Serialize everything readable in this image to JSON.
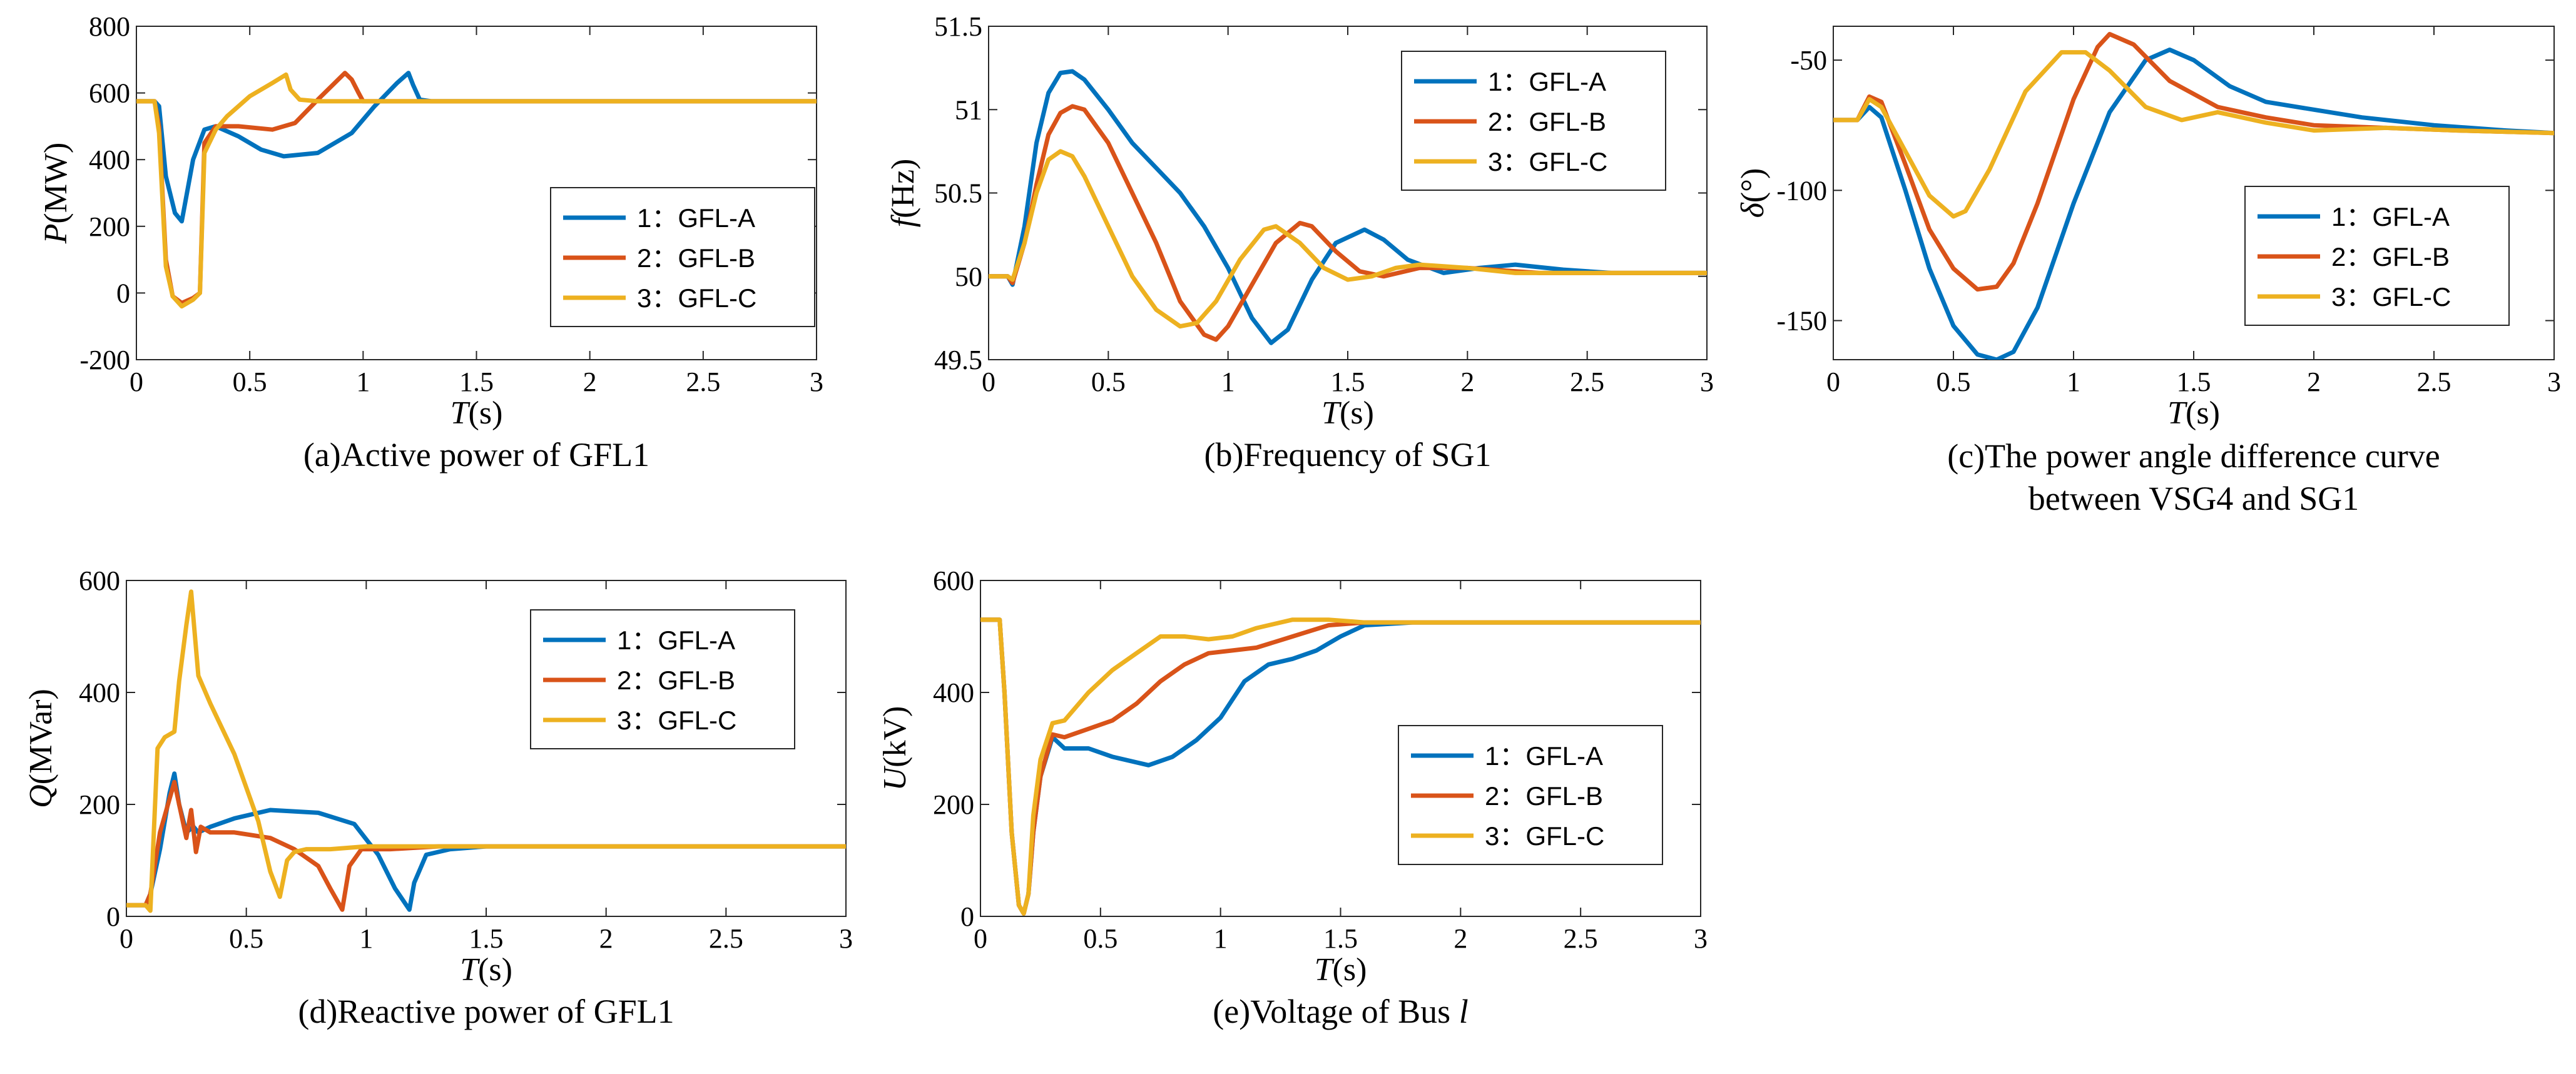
{
  "colors": {
    "A": "#0072BD",
    "B": "#D95319",
    "C": "#EDB120"
  },
  "chart_data": [
    {
      "type": "line",
      "id": "a",
      "caption": "(a)Active power of GFL1",
      "ylabel_sym": "P",
      "ylabel_unit": "(MW)",
      "xlabel_sym": "T",
      "xlabel_unit": "(s)",
      "xlim": [
        0,
        3
      ],
      "ylim": [
        -200,
        800
      ],
      "xticks": [
        0,
        0.5,
        1,
        1.5,
        2,
        2.5,
        3
      ],
      "yticks": [
        -200,
        0,
        200,
        400,
        600,
        800
      ],
      "legend": "lower-right",
      "series": [
        {
          "name": "1：GFL-A",
          "color_key": "A",
          "x": [
            0,
            0.08,
            0.1,
            0.13,
            0.17,
            0.2,
            0.25,
            0.3,
            0.35,
            0.45,
            0.55,
            0.65,
            0.8,
            0.95,
            1.05,
            1.15,
            1.2,
            1.22,
            1.25,
            1.3,
            1.4,
            3
          ],
          "y": [
            575,
            575,
            560,
            350,
            240,
            215,
            400,
            490,
            500,
            470,
            430,
            410,
            420,
            480,
            560,
            630,
            660,
            625,
            580,
            575,
            575,
            575
          ]
        },
        {
          "name": "2：GFL-B",
          "color_key": "B",
          "x": [
            0,
            0.08,
            0.1,
            0.13,
            0.16,
            0.2,
            0.25,
            0.28,
            0.3,
            0.35,
            0.45,
            0.6,
            0.7,
            0.8,
            0.92,
            0.95,
            0.98,
            1.0,
            1.05,
            1.2,
            3
          ],
          "y": [
            575,
            575,
            500,
            100,
            -10,
            -30,
            -15,
            0,
            450,
            500,
            500,
            490,
            510,
            580,
            660,
            640,
            600,
            575,
            575,
            575,
            575
          ]
        },
        {
          "name": "3：GFL-C",
          "color_key": "C",
          "x": [
            0,
            0.08,
            0.1,
            0.13,
            0.16,
            0.2,
            0.25,
            0.28,
            0.3,
            0.35,
            0.4,
            0.5,
            0.6,
            0.66,
            0.68,
            0.72,
            0.8,
            1.0,
            3
          ],
          "y": [
            575,
            575,
            480,
            80,
            -10,
            -40,
            -20,
            0,
            420,
            490,
            530,
            590,
            630,
            655,
            610,
            580,
            575,
            575,
            575
          ]
        }
      ]
    },
    {
      "type": "line",
      "id": "b",
      "caption": "(b)Frequency of SG1",
      "ylabel_sym": "f",
      "ylabel_unit": "(Hz)",
      "xlabel_sym": "T",
      "xlabel_unit": "(s)",
      "xlim": [
        0,
        3
      ],
      "ylim": [
        49.5,
        51.5
      ],
      "xticks": [
        0,
        0.5,
        1,
        1.5,
        2,
        2.5,
        3
      ],
      "yticks": [
        49.5,
        50,
        50.5,
        51,
        51.5
      ],
      "legend": "top-right",
      "series": [
        {
          "name": "1：GFL-A",
          "color_key": "A",
          "x": [
            0,
            0.08,
            0.1,
            0.15,
            0.2,
            0.25,
            0.3,
            0.35,
            0.4,
            0.5,
            0.6,
            0.7,
            0.8,
            0.9,
            1.0,
            1.1,
            1.18,
            1.25,
            1.35,
            1.45,
            1.57,
            1.65,
            1.75,
            1.9,
            2.05,
            2.2,
            2.4,
            2.6,
            2.8,
            3
          ],
          "y": [
            50,
            50,
            49.95,
            50.3,
            50.8,
            51.1,
            51.22,
            51.23,
            51.18,
            51.0,
            50.8,
            50.65,
            50.5,
            50.3,
            50.05,
            49.75,
            49.6,
            49.68,
            49.98,
            50.2,
            50.28,
            50.22,
            50.1,
            50.02,
            50.05,
            50.07,
            50.04,
            50.02,
            50.02,
            50.02
          ]
        },
        {
          "name": "2：GFL-B",
          "color_key": "B",
          "x": [
            0,
            0.08,
            0.1,
            0.15,
            0.2,
            0.25,
            0.3,
            0.35,
            0.4,
            0.5,
            0.6,
            0.7,
            0.8,
            0.9,
            0.95,
            1.0,
            1.1,
            1.2,
            1.3,
            1.35,
            1.45,
            1.55,
            1.65,
            1.8,
            2.0,
            2.3,
            2.6,
            3
          ],
          "y": [
            50,
            50,
            49.96,
            50.2,
            50.55,
            50.85,
            50.98,
            51.02,
            51.0,
            50.8,
            50.5,
            50.2,
            49.85,
            49.65,
            49.62,
            49.7,
            49.95,
            50.2,
            50.32,
            50.3,
            50.15,
            50.03,
            50.0,
            50.05,
            50.05,
            50.02,
            50.02,
            50.02
          ]
        },
        {
          "name": "3：GFL-C",
          "color_key": "C",
          "x": [
            0,
            0.08,
            0.1,
            0.15,
            0.2,
            0.25,
            0.3,
            0.35,
            0.4,
            0.5,
            0.6,
            0.7,
            0.8,
            0.87,
            0.95,
            1.05,
            1.15,
            1.2,
            1.3,
            1.4,
            1.5,
            1.6,
            1.7,
            1.8,
            2.0,
            2.2,
            2.5,
            3
          ],
          "y": [
            50,
            50,
            49.98,
            50.2,
            50.5,
            50.7,
            50.75,
            50.72,
            50.6,
            50.3,
            50.0,
            49.8,
            49.7,
            49.72,
            49.85,
            50.1,
            50.28,
            50.3,
            50.2,
            50.05,
            49.98,
            50.0,
            50.05,
            50.07,
            50.05,
            50.02,
            50.02,
            50.02
          ]
        }
      ]
    },
    {
      "type": "line",
      "id": "c",
      "caption_lines": [
        "(c)The power angle difference curve",
        "between VSG4 and SG1"
      ],
      "ylabel_sym": "δ",
      "ylabel_unit": "(°)",
      "xlabel_sym": "T",
      "xlabel_unit": "(s)",
      "xlim": [
        0,
        3
      ],
      "ylim": [
        -165,
        -37
      ],
      "xticks": [
        0,
        0.5,
        1,
        1.5,
        2,
        2.5,
        3
      ],
      "yticks": [
        -150,
        -100,
        -50
      ],
      "legend": "lower-right",
      "series": [
        {
          "name": "1：GFL-A",
          "color_key": "A",
          "x": [
            0,
            0.1,
            0.15,
            0.2,
            0.3,
            0.4,
            0.5,
            0.6,
            0.68,
            0.75,
            0.85,
            1.0,
            1.15,
            1.3,
            1.4,
            1.5,
            1.65,
            1.8,
            2.0,
            2.2,
            2.5,
            2.8,
            3
          ],
          "y": [
            -73,
            -73,
            -68,
            -72,
            -100,
            -130,
            -152,
            -163,
            -165,
            -162,
            -145,
            -105,
            -70,
            -50,
            -46,
            -50,
            -60,
            -66,
            -69,
            -72,
            -75,
            -77,
            -78
          ]
        },
        {
          "name": "2：GFL-B",
          "color_key": "B",
          "x": [
            0,
            0.1,
            0.15,
            0.2,
            0.3,
            0.4,
            0.5,
            0.6,
            0.68,
            0.75,
            0.85,
            1.0,
            1.1,
            1.15,
            1.25,
            1.4,
            1.6,
            1.8,
            2.0,
            2.3,
            2.6,
            3
          ],
          "y": [
            -73,
            -73,
            -64,
            -66,
            -90,
            -115,
            -130,
            -138,
            -137,
            -128,
            -105,
            -65,
            -45,
            -40,
            -44,
            -58,
            -68,
            -72,
            -75,
            -76,
            -77,
            -78
          ]
        },
        {
          "name": "3：GFL-C",
          "color_key": "C",
          "x": [
            0,
            0.1,
            0.15,
            0.2,
            0.3,
            0.4,
            0.5,
            0.55,
            0.65,
            0.8,
            0.95,
            1.05,
            1.15,
            1.3,
            1.45,
            1.6,
            1.8,
            2.0,
            2.3,
            2.6,
            3
          ],
          "y": [
            -73,
            -73,
            -65,
            -68,
            -85,
            -102,
            -110,
            -108,
            -92,
            -62,
            -47,
            -47,
            -54,
            -68,
            -73,
            -70,
            -74,
            -77,
            -76,
            -77,
            -78
          ]
        }
      ]
    },
    {
      "type": "line",
      "id": "d",
      "caption": "(d)Reactive power of GFL1",
      "ylabel_sym": "Q",
      "ylabel_unit": "(MVar)",
      "xlabel_sym": "T",
      "xlabel_unit": "(s)",
      "xlim": [
        0,
        3
      ],
      "ylim": [
        0,
        600
      ],
      "xticks": [
        0,
        0.5,
        1,
        1.5,
        2,
        2.5,
        3
      ],
      "yticks": [
        0,
        200,
        400,
        600
      ],
      "legend": "top-right",
      "series": [
        {
          "name": "1：GFL-A",
          "color_key": "A",
          "x": [
            0,
            0.08,
            0.1,
            0.14,
            0.18,
            0.2,
            0.22,
            0.25,
            0.28,
            0.3,
            0.35,
            0.45,
            0.6,
            0.8,
            0.95,
            1.05,
            1.12,
            1.18,
            1.2,
            1.25,
            1.35,
            1.5,
            1.7,
            2.0,
            3
          ],
          "y": [
            20,
            20,
            40,
            120,
            220,
            255,
            200,
            150,
            160,
            150,
            160,
            175,
            190,
            185,
            165,
            110,
            50,
            12,
            60,
            110,
            120,
            125,
            125,
            125,
            125
          ]
        },
        {
          "name": "2：GFL-B",
          "color_key": "B",
          "x": [
            0,
            0.08,
            0.1,
            0.14,
            0.18,
            0.2,
            0.22,
            0.25,
            0.27,
            0.29,
            0.31,
            0.35,
            0.45,
            0.6,
            0.7,
            0.8,
            0.85,
            0.9,
            0.93,
            0.98,
            1.1,
            1.3,
            3
          ],
          "y": [
            20,
            20,
            40,
            150,
            210,
            240,
            200,
            140,
            190,
            115,
            160,
            150,
            150,
            140,
            120,
            90,
            50,
            12,
            90,
            120,
            120,
            125,
            125
          ]
        },
        {
          "name": "3：GFL-C",
          "color_key": "C",
          "x": [
            0,
            0.08,
            0.1,
            0.13,
            0.16,
            0.2,
            0.22,
            0.25,
            0.27,
            0.3,
            0.35,
            0.45,
            0.55,
            0.6,
            0.64,
            0.67,
            0.7,
            0.75,
            0.85,
            1.0,
            1.3,
            3
          ],
          "y": [
            20,
            20,
            10,
            300,
            320,
            330,
            420,
            520,
            580,
            430,
            380,
            290,
            170,
            80,
            35,
            100,
            115,
            120,
            120,
            125,
            125,
            125
          ]
        }
      ]
    },
    {
      "type": "line",
      "id": "e",
      "caption_prefix": "(e)Voltage of Bus ",
      "caption_italic": "l",
      "ylabel_sym": "U",
      "ylabel_unit": "(kV)",
      "xlabel_sym": "T",
      "xlabel_unit": "(s)",
      "xlim": [
        0,
        3
      ],
      "ylim": [
        0,
        600
      ],
      "xticks": [
        0,
        0.5,
        1,
        1.5,
        2,
        2.5,
        3
      ],
      "yticks": [
        0,
        200,
        400,
        600
      ],
      "legend": "center-right",
      "series": [
        {
          "name": "1：GFL-A",
          "color_key": "A",
          "x": [
            0,
            0.08,
            0.1,
            0.13,
            0.16,
            0.18,
            0.2,
            0.22,
            0.25,
            0.3,
            0.35,
            0.45,
            0.55,
            0.7,
            0.8,
            0.9,
            1.0,
            1.1,
            1.2,
            1.3,
            1.4,
            1.5,
            1.6,
            1.8,
            2.0,
            3
          ],
          "y": [
            530,
            530,
            400,
            150,
            20,
            5,
            40,
            150,
            250,
            320,
            300,
            300,
            285,
            270,
            285,
            315,
            355,
            420,
            450,
            460,
            475,
            500,
            520,
            525,
            525,
            525
          ]
        },
        {
          "name": "2：GFL-B",
          "color_key": "B",
          "x": [
            0,
            0.08,
            0.1,
            0.13,
            0.16,
            0.18,
            0.2,
            0.22,
            0.25,
            0.3,
            0.35,
            0.45,
            0.55,
            0.65,
            0.75,
            0.85,
            0.95,
            1.05,
            1.15,
            1.3,
            1.45,
            1.6,
            1.8,
            2.0,
            3
          ],
          "y": [
            530,
            530,
            400,
            150,
            20,
            5,
            40,
            150,
            250,
            325,
            320,
            335,
            350,
            380,
            420,
            450,
            470,
            475,
            480,
            500,
            520,
            525,
            525,
            525,
            525
          ]
        },
        {
          "name": "3：GFL-C",
          "color_key": "C",
          "x": [
            0,
            0.08,
            0.1,
            0.13,
            0.16,
            0.18,
            0.2,
            0.22,
            0.25,
            0.3,
            0.35,
            0.45,
            0.55,
            0.65,
            0.75,
            0.85,
            0.95,
            1.05,
            1.15,
            1.3,
            1.45,
            1.6,
            1.8,
            2.0,
            3
          ],
          "y": [
            530,
            530,
            400,
            150,
            20,
            5,
            40,
            180,
            280,
            345,
            350,
            400,
            440,
            470,
            500,
            500,
            495,
            500,
            515,
            530,
            530,
            525,
            525,
            525,
            525
          ]
        }
      ]
    }
  ]
}
